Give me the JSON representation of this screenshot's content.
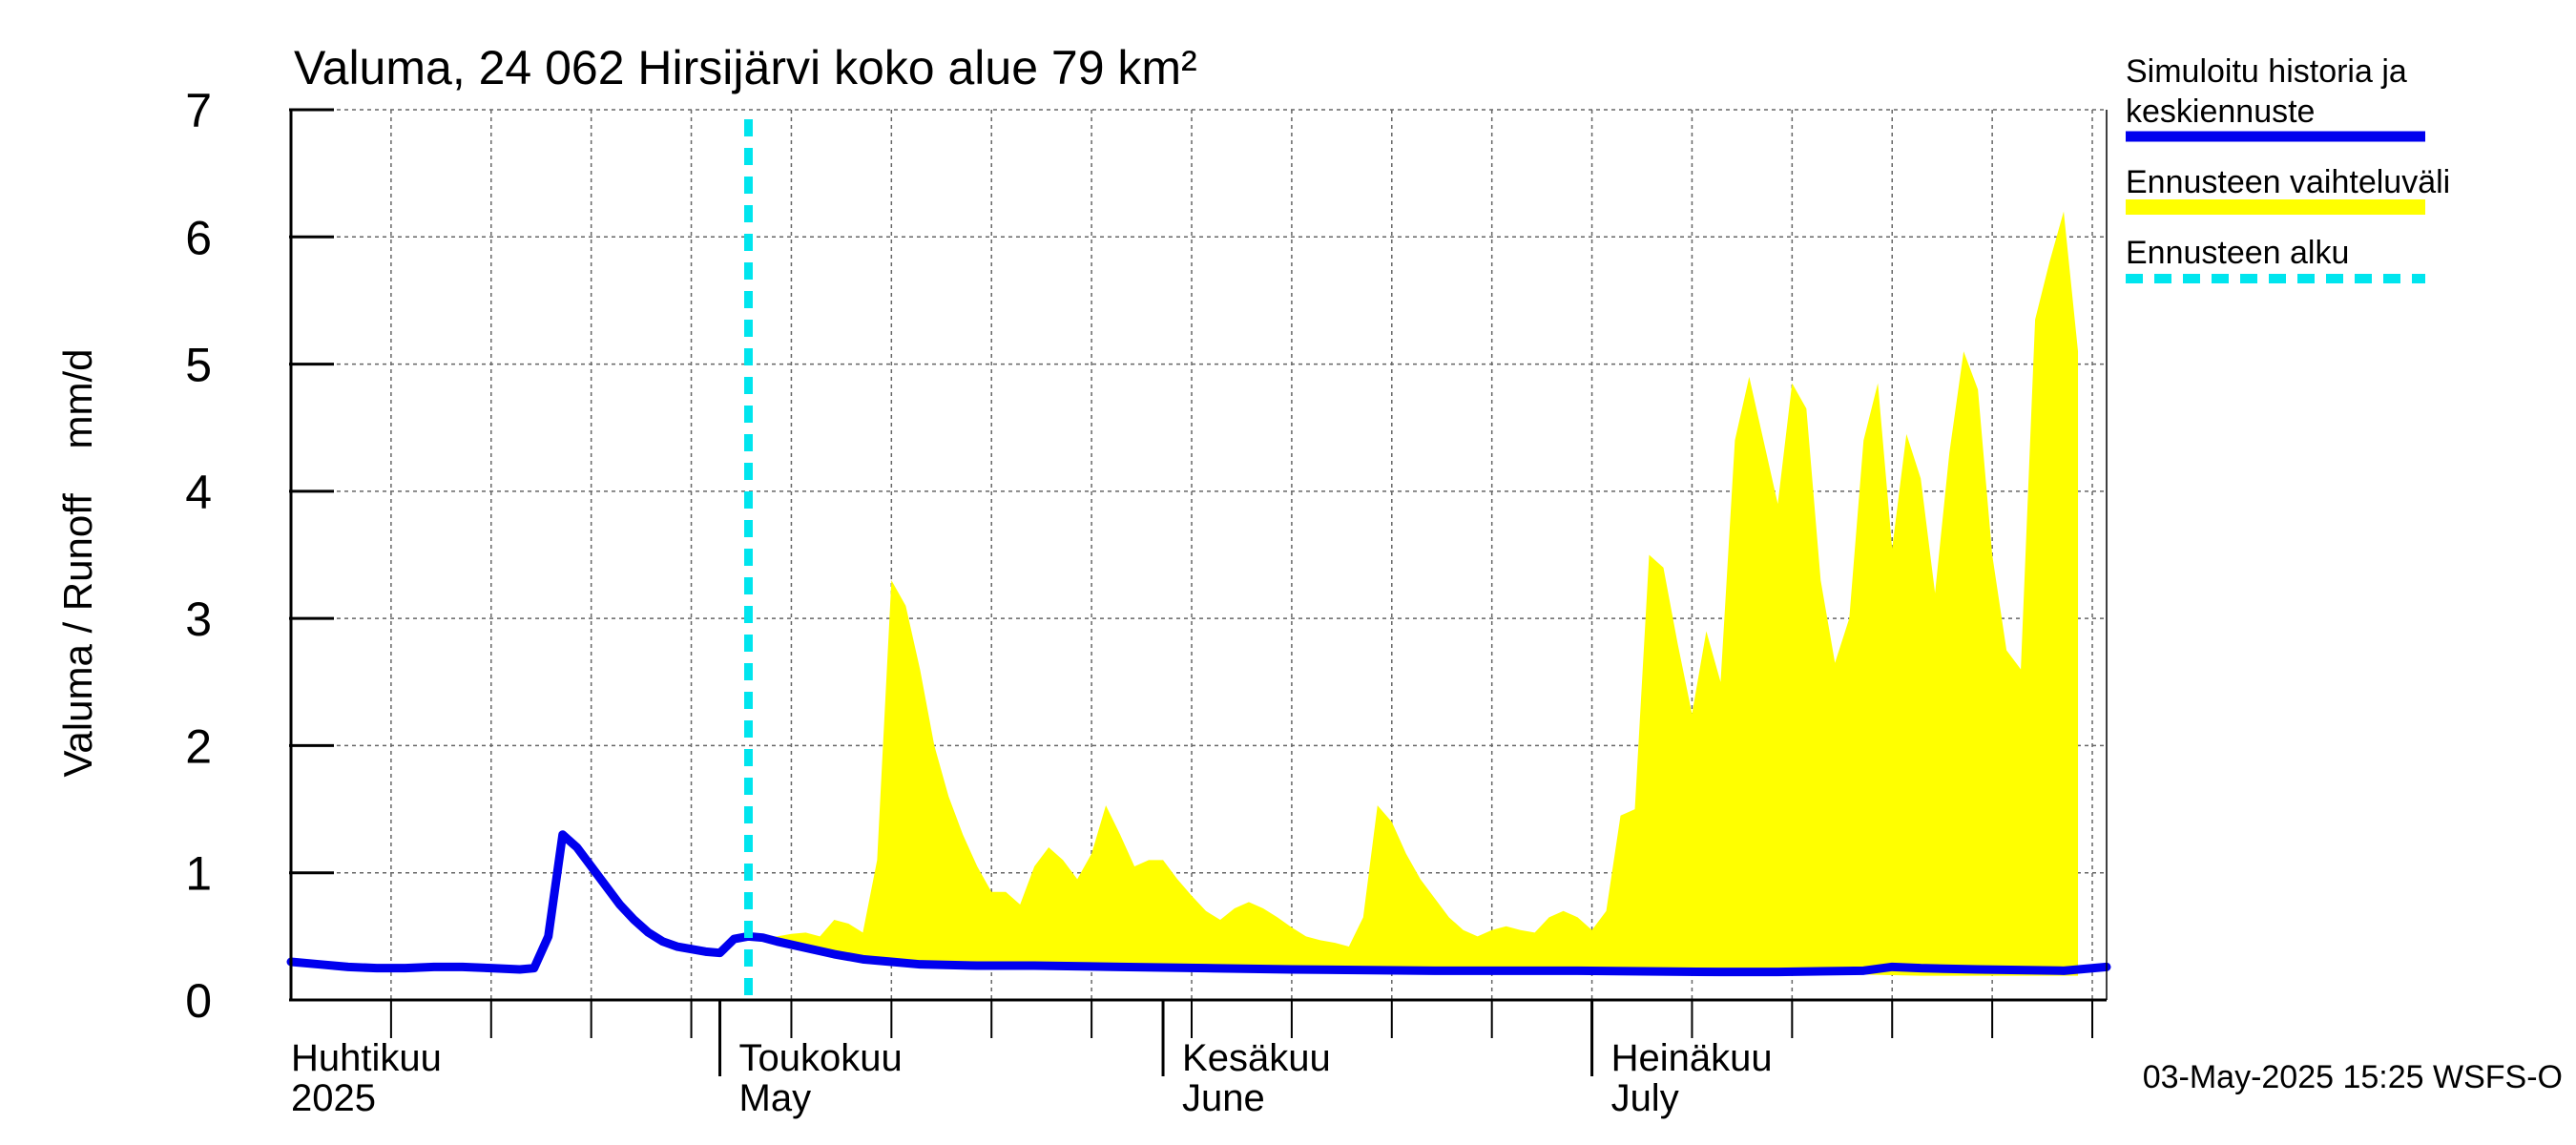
{
  "chart_data": {
    "type": "area",
    "title": "Valuma, 24 062 Hirsijärvi koko alue 79 km²",
    "ylabel": "Valuma / Runoff    mm/d",
    "ylim": [
      0,
      7
    ],
    "yticks": [
      0,
      1,
      2,
      3,
      4,
      5,
      6,
      7
    ],
    "x_range_days": [
      0,
      127
    ],
    "forecast_start_day": 32,
    "month_labels": [
      {
        "day": 0,
        "fi": "Huhtikuu",
        "en": "2025"
      },
      {
        "day": 30,
        "fi": "Toukokuu",
        "en": "May"
      },
      {
        "day": 61,
        "fi": "Kesäkuu",
        "en": "June"
      },
      {
        "day": 91,
        "fi": "Heinäkuu",
        "en": "July"
      }
    ],
    "legend": {
      "history": "Simuloitu historia ja keskiennuste",
      "history_line1": "Simuloitu historia ja",
      "history_line2": "keskiennuste",
      "range": "Ennusteen vaihteluväli",
      "start": "Ennusteen alku"
    },
    "footer": "03-May-2025 15:25 WSFS-O",
    "colors": {
      "history": "#0000ee",
      "range": "#ffff00",
      "start": "#00e5ee"
    },
    "series": [
      {
        "name": "Simuloitu historia ja keskiennuste",
        "points": [
          [
            0,
            0.3
          ],
          [
            2,
            0.28
          ],
          [
            4,
            0.26
          ],
          [
            6,
            0.25
          ],
          [
            8,
            0.25
          ],
          [
            10,
            0.26
          ],
          [
            12,
            0.26
          ],
          [
            14,
            0.25
          ],
          [
            16,
            0.24
          ],
          [
            17,
            0.25
          ],
          [
            18,
            0.5
          ],
          [
            19,
            1.3
          ],
          [
            20,
            1.2
          ],
          [
            21,
            1.05
          ],
          [
            22,
            0.9
          ],
          [
            23,
            0.75
          ],
          [
            24,
            0.63
          ],
          [
            25,
            0.53
          ],
          [
            26,
            0.46
          ],
          [
            27,
            0.42
          ],
          [
            28,
            0.4
          ],
          [
            29,
            0.38
          ],
          [
            30,
            0.37
          ],
          [
            31,
            0.48
          ],
          [
            32,
            0.5
          ],
          [
            33,
            0.49
          ],
          [
            34,
            0.46
          ],
          [
            36,
            0.41
          ],
          [
            38,
            0.36
          ],
          [
            40,
            0.32
          ],
          [
            42,
            0.3
          ],
          [
            44,
            0.28
          ],
          [
            48,
            0.27
          ],
          [
            52,
            0.27
          ],
          [
            58,
            0.26
          ],
          [
            64,
            0.25
          ],
          [
            70,
            0.24
          ],
          [
            80,
            0.23
          ],
          [
            90,
            0.23
          ],
          [
            100,
            0.22
          ],
          [
            104,
            0.22
          ],
          [
            110,
            0.23
          ],
          [
            112,
            0.26
          ],
          [
            114,
            0.25
          ],
          [
            118,
            0.24
          ],
          [
            124,
            0.23
          ],
          [
            127,
            0.26
          ]
        ]
      },
      {
        "name": "Ennusteen vaihteluväli",
        "upper": [
          [
            32,
            0.5
          ],
          [
            34,
            0.5
          ],
          [
            35,
            0.52
          ],
          [
            36,
            0.53
          ],
          [
            37,
            0.5
          ],
          [
            38,
            0.63
          ],
          [
            39,
            0.6
          ],
          [
            40,
            0.53
          ],
          [
            41,
            1.1
          ],
          [
            42,
            3.3
          ],
          [
            43,
            3.1
          ],
          [
            44,
            2.6
          ],
          [
            45,
            2.0
          ],
          [
            46,
            1.6
          ],
          [
            47,
            1.3
          ],
          [
            48,
            1.05
          ],
          [
            49,
            0.85
          ],
          [
            50,
            0.85
          ],
          [
            51,
            0.75
          ],
          [
            52,
            1.05
          ],
          [
            53,
            1.2
          ],
          [
            54,
            1.1
          ],
          [
            55,
            0.95
          ],
          [
            56,
            1.15
          ],
          [
            57,
            1.53
          ],
          [
            58,
            1.3
          ],
          [
            59,
            1.05
          ],
          [
            60,
            1.1
          ],
          [
            61,
            1.1
          ],
          [
            62,
            0.95
          ],
          [
            63,
            0.82
          ],
          [
            64,
            0.7
          ],
          [
            65,
            0.63
          ],
          [
            66,
            0.72
          ],
          [
            67,
            0.77
          ],
          [
            68,
            0.72
          ],
          [
            69,
            0.65
          ],
          [
            70,
            0.57
          ],
          [
            71,
            0.5
          ],
          [
            72,
            0.47
          ],
          [
            73,
            0.45
          ],
          [
            74,
            0.42
          ],
          [
            75,
            0.65
          ],
          [
            76,
            1.53
          ],
          [
            77,
            1.4
          ],
          [
            78,
            1.15
          ],
          [
            79,
            0.95
          ],
          [
            80,
            0.8
          ],
          [
            81,
            0.65
          ],
          [
            82,
            0.55
          ],
          [
            83,
            0.5
          ],
          [
            84,
            0.55
          ],
          [
            85,
            0.58
          ],
          [
            86,
            0.55
          ],
          [
            87,
            0.53
          ],
          [
            88,
            0.65
          ],
          [
            89,
            0.7
          ],
          [
            90,
            0.65
          ],
          [
            91,
            0.55
          ],
          [
            92,
            0.7
          ],
          [
            93,
            1.45
          ],
          [
            94,
            1.5
          ],
          [
            95,
            3.5
          ],
          [
            96,
            3.4
          ],
          [
            97,
            2.8
          ],
          [
            98,
            2.25
          ],
          [
            99,
            2.9
          ],
          [
            100,
            2.5
          ],
          [
            101,
            4.4
          ],
          [
            102,
            4.9
          ],
          [
            103,
            4.4
          ],
          [
            104,
            3.9
          ],
          [
            105,
            4.85
          ],
          [
            106,
            4.65
          ],
          [
            107,
            3.3
          ],
          [
            108,
            2.65
          ],
          [
            109,
            3.0
          ],
          [
            110,
            4.4
          ],
          [
            111,
            4.85
          ],
          [
            112,
            3.55
          ],
          [
            113,
            4.45
          ],
          [
            114,
            4.1
          ],
          [
            115,
            3.2
          ],
          [
            116,
            4.3
          ],
          [
            117,
            5.1
          ],
          [
            118,
            4.8
          ],
          [
            119,
            3.5
          ],
          [
            120,
            2.75
          ],
          [
            121,
            2.6
          ],
          [
            122,
            5.35
          ],
          [
            123,
            5.8
          ],
          [
            124,
            6.2
          ],
          [
            125,
            5.1
          ]
        ],
        "lower": [
          [
            32,
            0.48
          ],
          [
            36,
            0.4
          ],
          [
            40,
            0.33
          ],
          [
            44,
            0.29
          ],
          [
            50,
            0.27
          ],
          [
            56,
            0.26
          ],
          [
            62,
            0.25
          ],
          [
            70,
            0.24
          ],
          [
            80,
            0.22
          ],
          [
            90,
            0.21
          ],
          [
            100,
            0.2
          ],
          [
            104,
            0.19
          ],
          [
            106,
            0.21
          ],
          [
            110,
            0.2
          ],
          [
            114,
            0.19
          ],
          [
            118,
            0.19
          ],
          [
            122,
            0.19
          ],
          [
            125,
            0.19
          ]
        ]
      }
    ]
  }
}
